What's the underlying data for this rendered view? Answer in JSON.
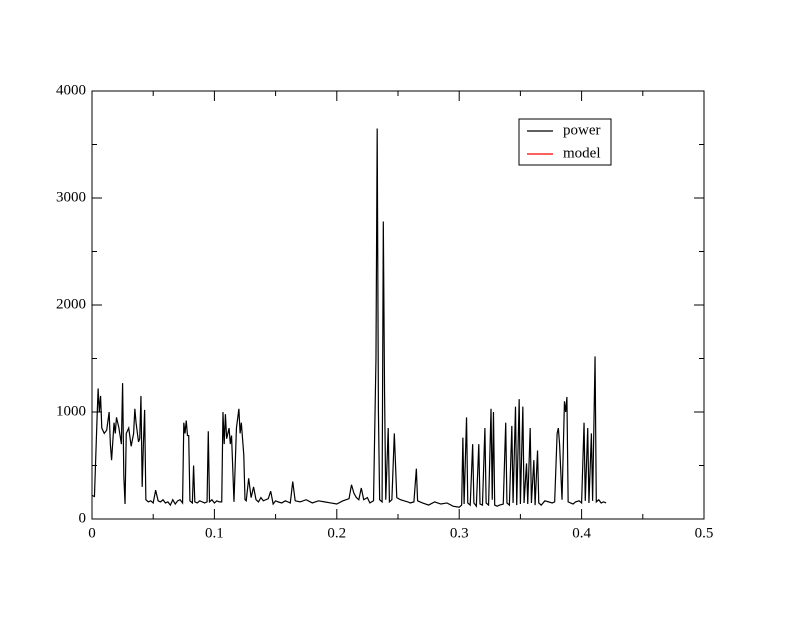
{
  "chart_data": {
    "type": "line",
    "xlim": [
      0,
      0.5
    ],
    "xticks": [
      0,
      0.1,
      0.2,
      0.3,
      0.4,
      0.5
    ],
    "ylim": [
      0,
      4000
    ],
    "yticks": [
      0,
      1000,
      2000,
      3000,
      4000
    ],
    "legend": "upper right",
    "series": [
      {
        "name": "power",
        "color": "#000000",
        "x": [
          0,
          0.002,
          0.004,
          0.005,
          0.006,
          0.007,
          0.008,
          0.01,
          0.012,
          0.014,
          0.015,
          0.016,
          0.018,
          0.019,
          0.02,
          0.022,
          0.024,
          0.025,
          0.026,
          0.027,
          0.028,
          0.03,
          0.032,
          0.034,
          0.035,
          0.036,
          0.038,
          0.039,
          0.04,
          0.041,
          0.042,
          0.043,
          0.044,
          0.046,
          0.048,
          0.05,
          0.052,
          0.054,
          0.056,
          0.058,
          0.06,
          0.062,
          0.064,
          0.066,
          0.068,
          0.07,
          0.072,
          0.074,
          0.075,
          0.076,
          0.077,
          0.078,
          0.079,
          0.08,
          0.082,
          0.083,
          0.084,
          0.086,
          0.088,
          0.09,
          0.092,
          0.094,
          0.095,
          0.096,
          0.098,
          0.1,
          0.102,
          0.104,
          0.106,
          0.107,
          0.108,
          0.109,
          0.11,
          0.112,
          0.113,
          0.114,
          0.116,
          0.118,
          0.12,
          0.121,
          0.122,
          0.124,
          0.125,
          0.126,
          0.128,
          0.13,
          0.132,
          0.134,
          0.136,
          0.138,
          0.14,
          0.142,
          0.144,
          0.146,
          0.148,
          0.15,
          0.152,
          0.155,
          0.158,
          0.16,
          0.162,
          0.164,
          0.166,
          0.17,
          0.175,
          0.18,
          0.185,
          0.19,
          0.195,
          0.2,
          0.205,
          0.21,
          0.212,
          0.214,
          0.216,
          0.218,
          0.22,
          0.222,
          0.225,
          0.227,
          0.23,
          0.232,
          0.233,
          0.234,
          0.235,
          0.237,
          0.238,
          0.239,
          0.24,
          0.242,
          0.243,
          0.245,
          0.247,
          0.249,
          0.252,
          0.255,
          0.258,
          0.26,
          0.263,
          0.265,
          0.266,
          0.27,
          0.275,
          0.28,
          0.285,
          0.29,
          0.295,
          0.3,
          0.302,
          0.303,
          0.304,
          0.306,
          0.307,
          0.309,
          0.311,
          0.312,
          0.314,
          0.316,
          0.317,
          0.319,
          0.321,
          0.322,
          0.324,
          0.326,
          0.327,
          0.328,
          0.329,
          0.331,
          0.333,
          0.336,
          0.338,
          0.339,
          0.341,
          0.343,
          0.344,
          0.346,
          0.347,
          0.349,
          0.35,
          0.352,
          0.353,
          0.355,
          0.356,
          0.358,
          0.359,
          0.361,
          0.362,
          0.364,
          0.365,
          0.367,
          0.37,
          0.373,
          0.376,
          0.378,
          0.38,
          0.381,
          0.382,
          0.384,
          0.386,
          0.387,
          0.388,
          0.389,
          0.391,
          0.393,
          0.395,
          0.398,
          0.4,
          0.402,
          0.403,
          0.405,
          0.406,
          0.408,
          0.409,
          0.411,
          0.412,
          0.414,
          0.416,
          0.418,
          0.42
        ],
        "values": [
          220,
          210,
          900,
          1220,
          1000,
          1150,
          850,
          800,
          830,
          1000,
          700,
          550,
          900,
          800,
          950,
          850,
          700,
          1270,
          400,
          140,
          800,
          850,
          680,
          800,
          1030,
          900,
          720,
          750,
          1150,
          300,
          700,
          1020,
          180,
          160,
          170,
          150,
          270,
          170,
          160,
          180,
          150,
          160,
          130,
          180,
          140,
          170,
          180,
          150,
          900,
          800,
          920,
          780,
          780,
          170,
          150,
          500,
          160,
          150,
          170,
          160,
          150,
          160,
          820,
          160,
          180,
          150,
          170,
          160,
          160,
          1000,
          700,
          980,
          750,
          850,
          700,
          780,
          160,
          850,
          1030,
          800,
          900,
          600,
          180,
          170,
          380,
          200,
          300,
          180,
          160,
          200,
          170,
          180,
          190,
          260,
          140,
          170,
          160,
          150,
          170,
          160,
          150,
          350,
          170,
          160,
          180,
          150,
          170,
          160,
          150,
          140,
          170,
          190,
          320,
          240,
          200,
          180,
          290,
          180,
          200,
          150,
          170,
          1500,
          3650,
          1000,
          180,
          160,
          2780,
          1200,
          180,
          850,
          160,
          180,
          800,
          200,
          180,
          170,
          160,
          150,
          160,
          470,
          170,
          150,
          130,
          160,
          140,
          150,
          120,
          110,
          130,
          760,
          140,
          950,
          150,
          130,
          700,
          150,
          120,
          700,
          140,
          130,
          850,
          150,
          130,
          1030,
          180,
          1000,
          130,
          120,
          130,
          140,
          900,
          150,
          130,
          870,
          150,
          1050,
          130,
          1120,
          140,
          1050,
          150,
          520,
          140,
          850,
          150,
          550,
          130,
          640,
          150,
          130,
          170,
          160,
          150,
          160,
          800,
          850,
          700,
          180,
          1100,
          1000,
          1140,
          160,
          150,
          140,
          160,
          170,
          150,
          900,
          170,
          850,
          150,
          800,
          170,
          1520,
          160,
          180,
          150,
          160,
          150
        ]
      },
      {
        "name": "model",
        "color": "#ff0000",
        "x": [],
        "values": []
      }
    ]
  }
}
